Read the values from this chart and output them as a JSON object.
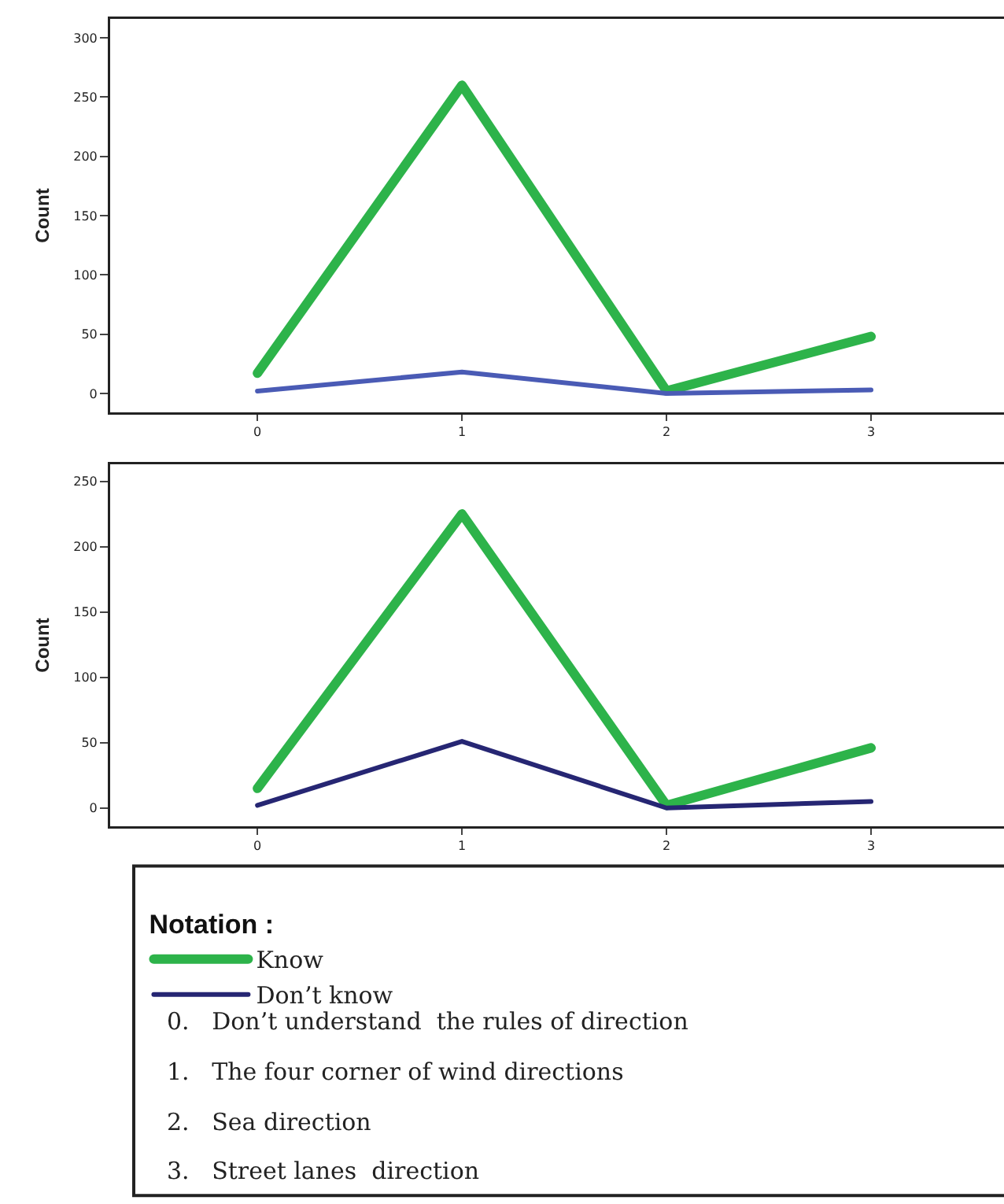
{
  "chart_data": [
    {
      "type": "line",
      "ylabel": "Count",
      "x": [
        0,
        1,
        2,
        3
      ],
      "xlim": [
        -0.72,
        3.65
      ],
      "xticks": [
        0,
        1,
        2,
        3
      ],
      "ylim": [
        -16,
        316
      ],
      "yticks": [
        0,
        50,
        100,
        150,
        200,
        250,
        300
      ],
      "grid": false,
      "series": [
        {
          "color": "#2db34a",
          "values": [
            17,
            260,
            2,
            48
          ]
        },
        {
          "color": "#4a5bb5",
          "values": [
            2,
            18,
            0,
            3
          ]
        }
      ]
    },
    {
      "type": "line",
      "ylabel": "Count",
      "x": [
        0,
        1,
        2,
        3
      ],
      "xlim": [
        -0.72,
        3.65
      ],
      "xticks": [
        0,
        1,
        2,
        3
      ],
      "ylim": [
        -14,
        263
      ],
      "yticks": [
        0,
        50,
        100,
        150,
        200,
        250
      ],
      "grid": false,
      "legend": "bottom",
      "legend_title": "Notation :",
      "series": [
        {
          "name": "Know",
          "color": "#2db34a",
          "values": [
            15,
            225,
            2,
            46
          ]
        },
        {
          "name": "Don’t know",
          "color": "#262673",
          "values": [
            2,
            51,
            0,
            5
          ]
        }
      ],
      "annotations": [
        "0.   Don’t understand  the rules of direction",
        "1.   The four corner of wind directions",
        "2.   Sea direction",
        "3.   Street lanes  direction"
      ]
    }
  ]
}
